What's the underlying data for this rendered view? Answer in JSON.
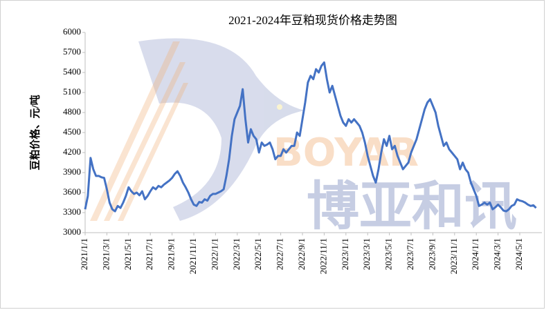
{
  "chart_data": {
    "type": "line",
    "title": "2021-2024年豆粕现货价格走势图",
    "y_label": "豆粕价格、元/吨",
    "watermark": {
      "latin": "BOYAR",
      "chinese": "博亚和讯"
    },
    "color": "#4472c4",
    "ylim": [
      3000,
      6000
    ],
    "yticks": [
      3000,
      3300,
      3600,
      3900,
      4200,
      4500,
      4800,
      5100,
      5400,
      5700,
      6000
    ],
    "categories": [
      "2021/1/1",
      null,
      null,
      null,
      null,
      null,
      null,
      null,
      "2021/3/1",
      null,
      null,
      null,
      null,
      null,
      null,
      null,
      "2021/5/1",
      null,
      null,
      null,
      null,
      null,
      null,
      null,
      "2021/7/1",
      null,
      null,
      null,
      null,
      null,
      null,
      null,
      "2021/9/1",
      null,
      null,
      null,
      null,
      null,
      null,
      null,
      "2021/11/1",
      null,
      null,
      null,
      null,
      null,
      null,
      null,
      "2022/1/1",
      null,
      null,
      null,
      null,
      null,
      null,
      null,
      "2022/3/1",
      null,
      null,
      null,
      null,
      null,
      null,
      null,
      "2022/5/1",
      null,
      null,
      null,
      null,
      null,
      null,
      null,
      "2022/7/1",
      null,
      null,
      null,
      null,
      null,
      null,
      null,
      "2022/9/1",
      null,
      null,
      null,
      null,
      null,
      null,
      null,
      "2022/11/1",
      null,
      null,
      null,
      null,
      null,
      null,
      null,
      "2023/1/1",
      null,
      null,
      null,
      null,
      null,
      null,
      null,
      "2023/3/1",
      null,
      null,
      null,
      null,
      null,
      null,
      null,
      "2023/5/1",
      null,
      null,
      null,
      null,
      null,
      null,
      null,
      "2023/7/1",
      null,
      null,
      null,
      null,
      null,
      null,
      null,
      "2023/9/1",
      null,
      null,
      null,
      null,
      null,
      null,
      null,
      "2023/11/1",
      null,
      null,
      null,
      null,
      null,
      null,
      null,
      "2024/1/1",
      null,
      null,
      null,
      null,
      null,
      null,
      null,
      "2024/3/1",
      null,
      null,
      null,
      null,
      null,
      null,
      null,
      "2024/5/1",
      null,
      null,
      null,
      null,
      null,
      null
    ],
    "values": [
      3350,
      3550,
      4120,
      3950,
      3850,
      3850,
      3830,
      3820,
      3650,
      3450,
      3350,
      3320,
      3400,
      3370,
      3450,
      3550,
      3680,
      3620,
      3580,
      3600,
      3560,
      3620,
      3500,
      3550,
      3620,
      3680,
      3650,
      3700,
      3680,
      3720,
      3750,
      3780,
      3820,
      3880,
      3920,
      3850,
      3750,
      3680,
      3600,
      3500,
      3420,
      3400,
      3460,
      3450,
      3500,
      3480,
      3550,
      3580,
      3580,
      3600,
      3620,
      3650,
      3850,
      4100,
      4450,
      4700,
      4800,
      4900,
      5150,
      4700,
      4350,
      4550,
      4450,
      4400,
      4200,
      4350,
      4300,
      4320,
      4350,
      4250,
      4100,
      4150,
      4150,
      4250,
      4200,
      4250,
      4300,
      4300,
      4500,
      4450,
      4700,
      4950,
      5250,
      5350,
      5300,
      5450,
      5400,
      5500,
      5550,
      5300,
      5100,
      5200,
      5050,
      4900,
      4750,
      4650,
      4600,
      4700,
      4650,
      4700,
      4650,
      4600,
      4500,
      4350,
      4150,
      4000,
      3850,
      3750,
      3950,
      4200,
      4400,
      4300,
      4450,
      4250,
      4300,
      4150,
      4050,
      3950,
      4000,
      4050,
      4200,
      4300,
      4400,
      4550,
      4700,
      4850,
      4950,
      5000,
      4900,
      4800,
      4600,
      4450,
      4300,
      4350,
      4250,
      4200,
      4150,
      4100,
      3950,
      4050,
      3950,
      3900,
      3750,
      3650,
      3550,
      3400,
      3420,
      3450,
      3420,
      3450,
      3350,
      3380,
      3420,
      3380,
      3330,
      3320,
      3350,
      3400,
      3420,
      3500,
      3480,
      3470,
      3450,
      3420,
      3400,
      3410,
      3370
    ]
  }
}
